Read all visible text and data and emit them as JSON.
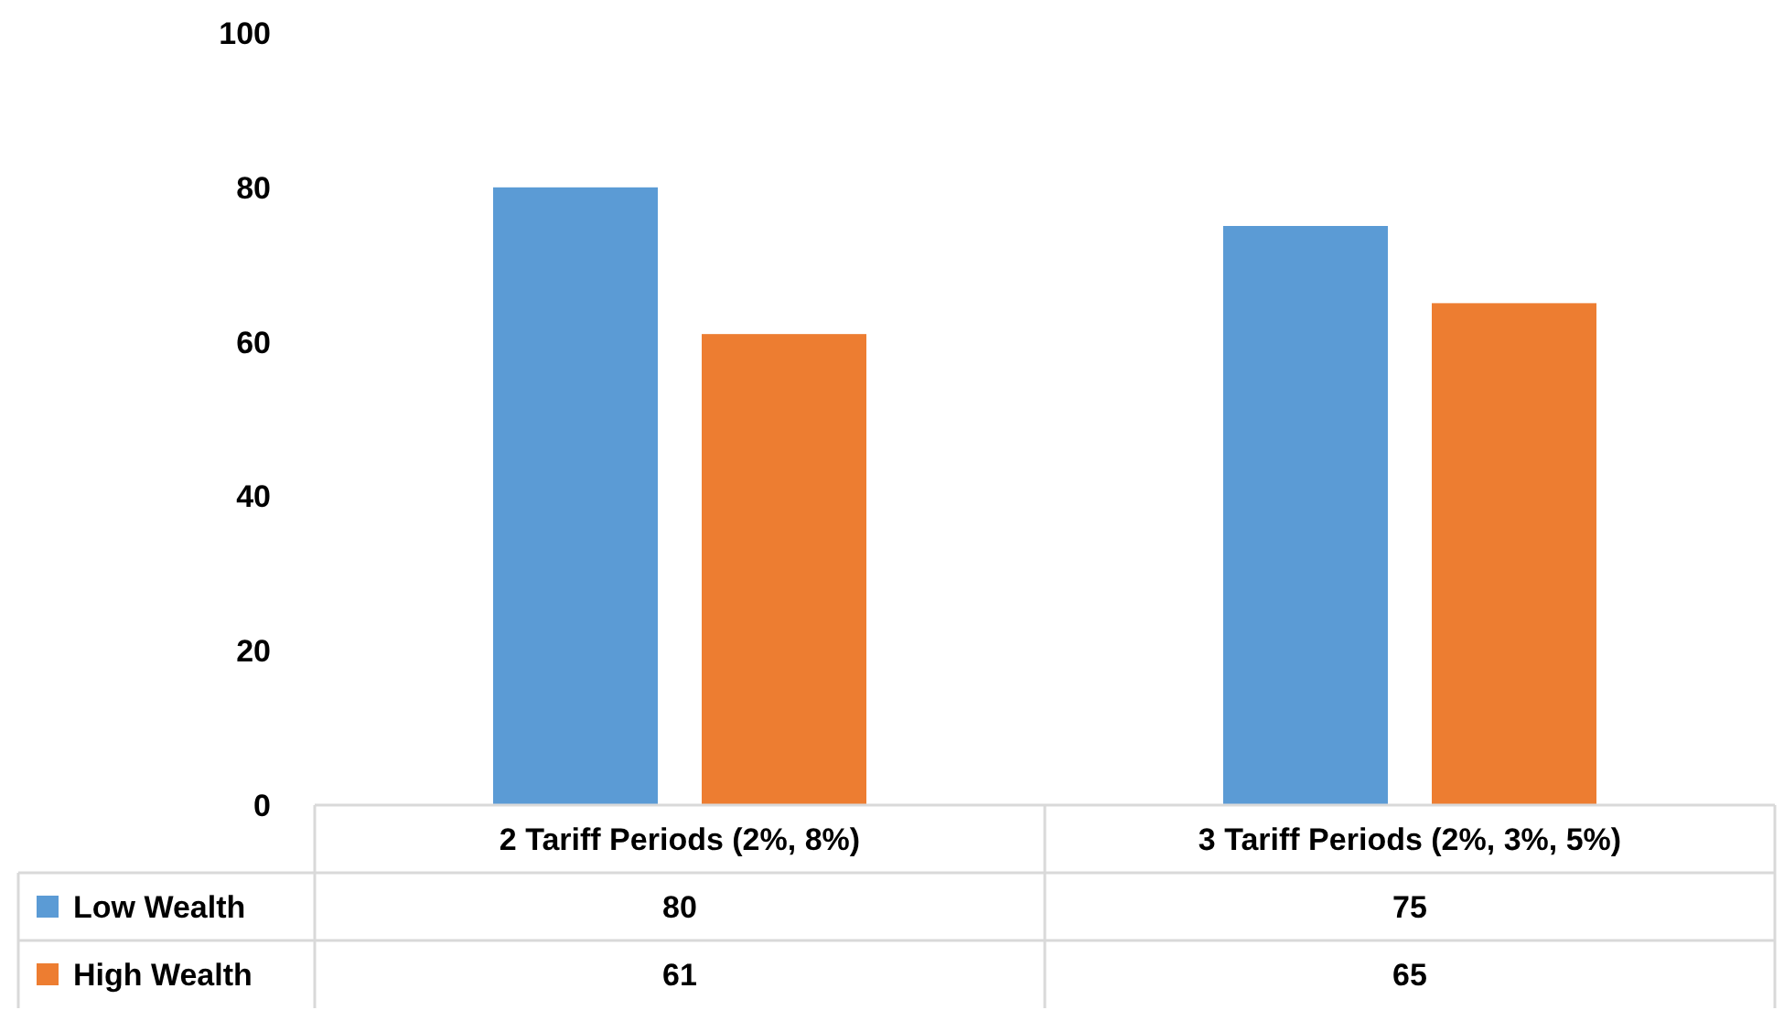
{
  "chart_data": {
    "type": "bar",
    "categories": [
      "2 Tariff Periods (2%, 8%)",
      "3 Tariff Periods (2%, 3%, 5%)"
    ],
    "series": [
      {
        "name": "Low Wealth",
        "color": "#5b9bd5",
        "values": [
          80,
          75
        ]
      },
      {
        "name": "High Wealth",
        "color": "#ed7d31",
        "values": [
          61,
          65
        ]
      }
    ],
    "ylim": [
      0,
      100
    ],
    "yticks": [
      0,
      20,
      40,
      60,
      80,
      100
    ],
    "grid": false,
    "legend": "bottom",
    "data_labels": true
  }
}
